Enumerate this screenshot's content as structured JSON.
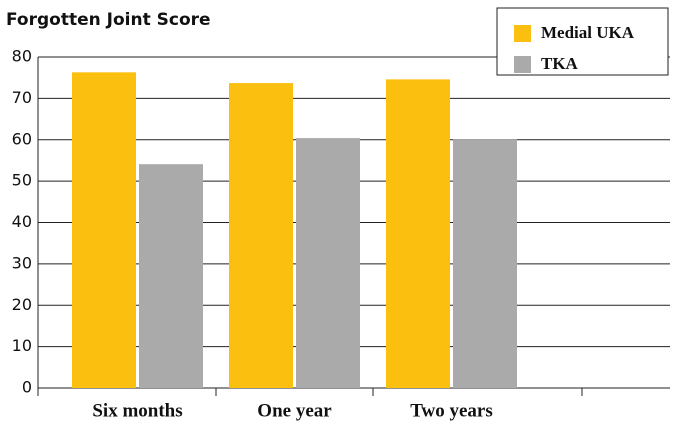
{
  "chart_data": {
    "type": "bar",
    "title": "Forgotten Joint Score",
    "categories": [
      "Six months",
      "One year",
      "Two years",
      null
    ],
    "series": [
      {
        "name": "Medial UKA",
        "color": "#fbbf10",
        "values": [
          76.3,
          73.7,
          74.6,
          null
        ]
      },
      {
        "name": "TKA",
        "color": "#aaaaaa",
        "values": [
          54.1,
          60.4,
          60.1,
          null
        ]
      }
    ],
    "ylim": [
      0,
      80
    ],
    "yticks": [
      0,
      10,
      20,
      30,
      40,
      50,
      60,
      70,
      80
    ],
    "grid": true,
    "legend": "top-right"
  }
}
